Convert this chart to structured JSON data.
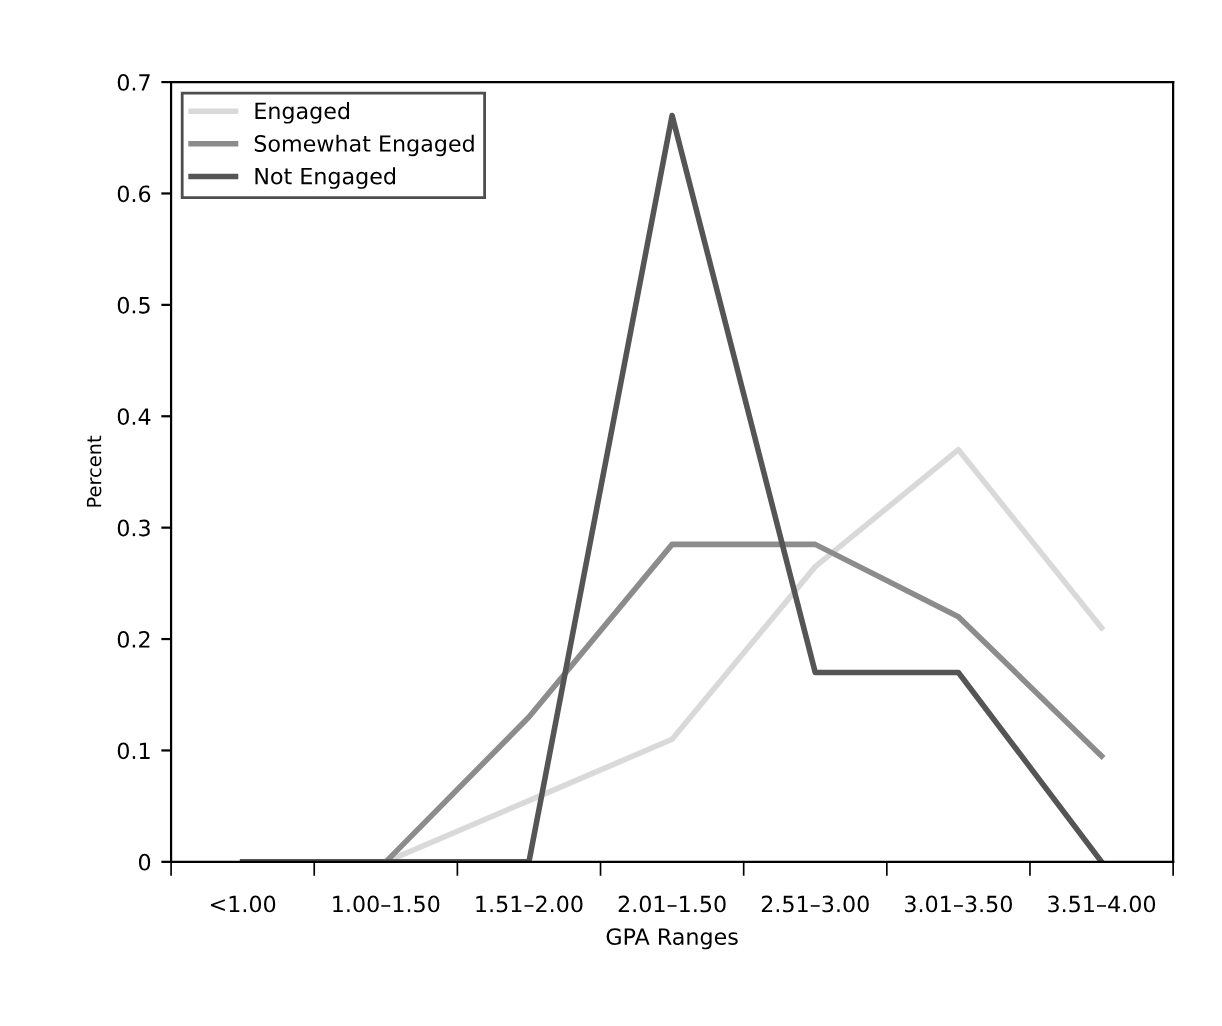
{
  "chart_data": {
    "type": "line",
    "xlabel": "GPA Ranges",
    "ylabel": "Percent",
    "categories": [
      "<1.00",
      "1.00–1.50",
      "1.51–2.00",
      "2.01–1.50",
      "2.51–3.00",
      "3.01–3.50",
      "3.51–4.00"
    ],
    "series": [
      {
        "name": "Engaged",
        "color": "#d9d9d9",
        "values": [
          0,
          0,
          0.055,
          0.11,
          0.265,
          0.37,
          0.21
        ]
      },
      {
        "name": "Somewhat Engaged",
        "color": "#8c8c8c",
        "values": [
          0,
          0,
          0.13,
          0.285,
          0.285,
          0.22,
          0.095
        ]
      },
      {
        "name": "Not Engaged",
        "color": "#555555",
        "values": [
          0,
          0,
          0,
          0.67,
          0.17,
          0.17,
          0
        ]
      }
    ],
    "ylim": [
      0,
      0.7
    ],
    "yticks": [
      0,
      0.1,
      0.2,
      0.3,
      0.4,
      0.5,
      0.6,
      0.7
    ],
    "grid": false,
    "legend": "top left",
    "marker": "none",
    "line_style": "solid"
  }
}
